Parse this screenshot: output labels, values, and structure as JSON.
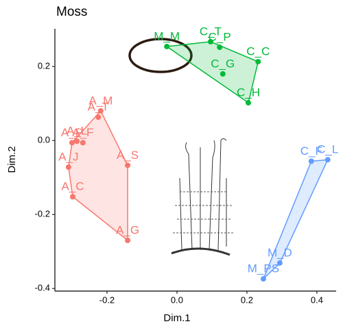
{
  "chart_data": {
    "type": "scatter",
    "title": "Moss",
    "x_label": "Dim.1",
    "y_label": "Dim.2",
    "xlim": [
      -0.349,
      0.455
    ],
    "ylim": [
      -0.407,
      0.302
    ],
    "xticks": [
      -0.2,
      {
        "value": 0,
        "label": "0.0"
      },
      0.2,
      0.4
    ],
    "yticks": [
      -0.4,
      -0.2,
      {
        "value": 0,
        "label": "0.0"
      },
      0.2
    ],
    "hulls": true,
    "series": [
      {
        "color": "#00BA38",
        "labels": [
          "M_M",
          "C_T",
          "C_P",
          "C_C",
          "C_G",
          "C_H"
        ],
        "x": [
          -0.029,
          0.096,
          0.122,
          0.232,
          0.131,
          0.204
        ],
        "y": [
          0.254,
          0.267,
          0.252,
          0.213,
          0.18,
          0.102
        ]
      },
      {
        "color": "#F8766D",
        "labels": [
          "A_M",
          "A_T",
          "A_P",
          "A_F",
          "A_L",
          "A_J",
          "A_C",
          "A_S",
          "A_G"
        ],
        "x": [
          -0.218,
          -0.225,
          -0.3,
          -0.269,
          -0.286,
          -0.31,
          -0.298,
          -0.141,
          -0.141
        ],
        "y": [
          0.08,
          0.063,
          -0.006,
          -0.006,
          -0.002,
          -0.072,
          -0.152,
          -0.067,
          -0.27
        ]
      },
      {
        "color": "#619CFF",
        "labels": [
          "C_L",
          "C_F",
          "M_D",
          "M_PS"
        ],
        "x": [
          0.431,
          0.384,
          0.294,
          0.247
        ],
        "y": [
          -0.052,
          -0.056,
          -0.331,
          -0.374
        ]
      }
    ]
  }
}
